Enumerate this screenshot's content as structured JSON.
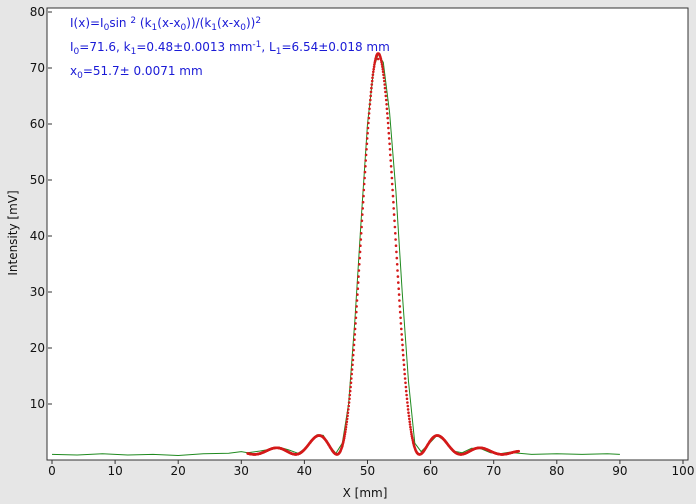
{
  "chart_data": {
    "type": "scatter",
    "xlabel": "X [mm]",
    "ylabel": "Intensity [mV]",
    "xlim": [
      0,
      100
    ],
    "ylim": [
      0,
      80
    ],
    "xticks": [
      "0",
      "10",
      "20",
      "30",
      "40",
      "50",
      "60",
      "70",
      "80",
      "90",
      "100"
    ],
    "yticks": [
      "10",
      "20",
      "30",
      "40",
      "50",
      "60",
      "70",
      "80"
    ],
    "grid": false,
    "annotations": {
      "formula": {
        "a": "I(x)=I",
        "b": "0",
        "c": "sin ",
        "d": "2",
        "e": " (k",
        "f": "1",
        "g": "(x-x",
        "h": "0",
        "i": "))/(k",
        "j": "1",
        "k": "(x-x",
        "l": "0",
        "m": "))",
        "n": "2"
      },
      "params": {
        "a": "I",
        "b": "0",
        "c": "=71.6,  k",
        "d": "1",
        "e": "=0.48±0.0013 mm",
        "f": "-1",
        "g": ",   L",
        "h": "1",
        "i": "=6.54±0.018 mm"
      },
      "x0": {
        "a": "x",
        "b": "0",
        "c": "=51.7±  0.0071 mm"
      }
    },
    "model": {
      "I0": 71.6,
      "k1": 0.48,
      "x0": 51.7,
      "fit_range": [
        31,
        74
      ]
    },
    "series": [
      {
        "style": "line",
        "color": "#1f8a1f",
        "points": [
          [
            0,
            1.0
          ],
          [
            4,
            0.9
          ],
          [
            8,
            1.1
          ],
          [
            12,
            0.9
          ],
          [
            16,
            1.0
          ],
          [
            20,
            0.8
          ],
          [
            24,
            1.1
          ],
          [
            28,
            1.2
          ],
          [
            30,
            1.5
          ],
          [
            31,
            1.3
          ],
          [
            33,
            1.6
          ],
          [
            35,
            2.0
          ],
          [
            36,
            2.3
          ],
          [
            37.5,
            1.8
          ],
          [
            39,
            1.2
          ],
          [
            40.5,
            2.4
          ],
          [
            42,
            4.5
          ],
          [
            43,
            4.4
          ],
          [
            44,
            2.5
          ],
          [
            45,
            1.2
          ],
          [
            46,
            3.0
          ],
          [
            47,
            10
          ],
          [
            48,
            25
          ],
          [
            49,
            43
          ],
          [
            50,
            60
          ],
          [
            51,
            70
          ],
          [
            51.7,
            72.5
          ],
          [
            52.5,
            71
          ],
          [
            53.5,
            62
          ],
          [
            54.5,
            48
          ],
          [
            55.5,
            30
          ],
          [
            56.5,
            14
          ],
          [
            57.5,
            3
          ],
          [
            58.5,
            1.5
          ],
          [
            60,
            3.2
          ],
          [
            61,
            4.4
          ],
          [
            62,
            3.6
          ],
          [
            63.5,
            1.6
          ],
          [
            65,
            1.3
          ],
          [
            66.5,
            2.1
          ],
          [
            68,
            2.0
          ],
          [
            69.5,
            1.3
          ],
          [
            71,
            1.1
          ],
          [
            72.5,
            1.4
          ],
          [
            74,
            1.2
          ],
          [
            76,
            1.0
          ],
          [
            80,
            1.1
          ],
          [
            84,
            1.0
          ],
          [
            88,
            1.1
          ],
          [
            90,
            1.0
          ]
        ]
      },
      {
        "style": "points",
        "color": "#d41a1a",
        "from_model": true
      }
    ]
  }
}
